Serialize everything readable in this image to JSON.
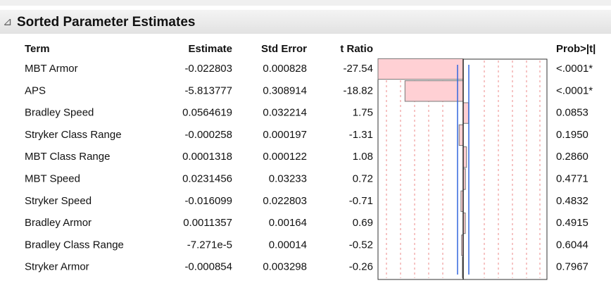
{
  "header": {
    "title": "Sorted Parameter Estimates"
  },
  "table": {
    "columns": [
      "Term",
      "Estimate",
      "Std Error",
      "t Ratio",
      "Prob>|t|"
    ],
    "rows": [
      {
        "term": "MBT Armor",
        "estimate": "-0.022803",
        "std_error": "0.000828",
        "t_ratio": -27.54,
        "prob": "<.0001*"
      },
      {
        "term": "APS",
        "estimate": "-5.813777",
        "std_error": "0.308914",
        "t_ratio": -18.82,
        "prob": "<.0001*"
      },
      {
        "term": "Bradley Speed",
        "estimate": "0.0564619",
        "std_error": "0.032214",
        "t_ratio": 1.75,
        "prob": "0.0853"
      },
      {
        "term": "Stryker Class Range",
        "estimate": "-0.000258",
        "std_error": "0.000197",
        "t_ratio": -1.31,
        "prob": "0.1950"
      },
      {
        "term": "MBT Class Range",
        "estimate": "0.0001318",
        "std_error": "0.000122",
        "t_ratio": 1.08,
        "prob": "0.2860"
      },
      {
        "term": "MBT Speed",
        "estimate": "0.0231456",
        "std_error": "0.03233",
        "t_ratio": 0.72,
        "prob": "0.4771"
      },
      {
        "term": "Stryker Speed",
        "estimate": "-0.016099",
        "std_error": "0.022803",
        "t_ratio": -0.71,
        "prob": "0.4832"
      },
      {
        "term": "Bradley Armor",
        "estimate": "0.0011357",
        "std_error": "0.00164",
        "t_ratio": 0.69,
        "prob": "0.4915"
      },
      {
        "term": "Bradley Class Range",
        "estimate": "-7.271e-5",
        "std_error": "0.00014",
        "t_ratio": -0.52,
        "prob": "0.6044"
      },
      {
        "term": "Stryker Armor",
        "estimate": "-0.000854",
        "std_error": "0.003298",
        "t_ratio": -0.26,
        "prob": "0.7967"
      }
    ]
  }
}
